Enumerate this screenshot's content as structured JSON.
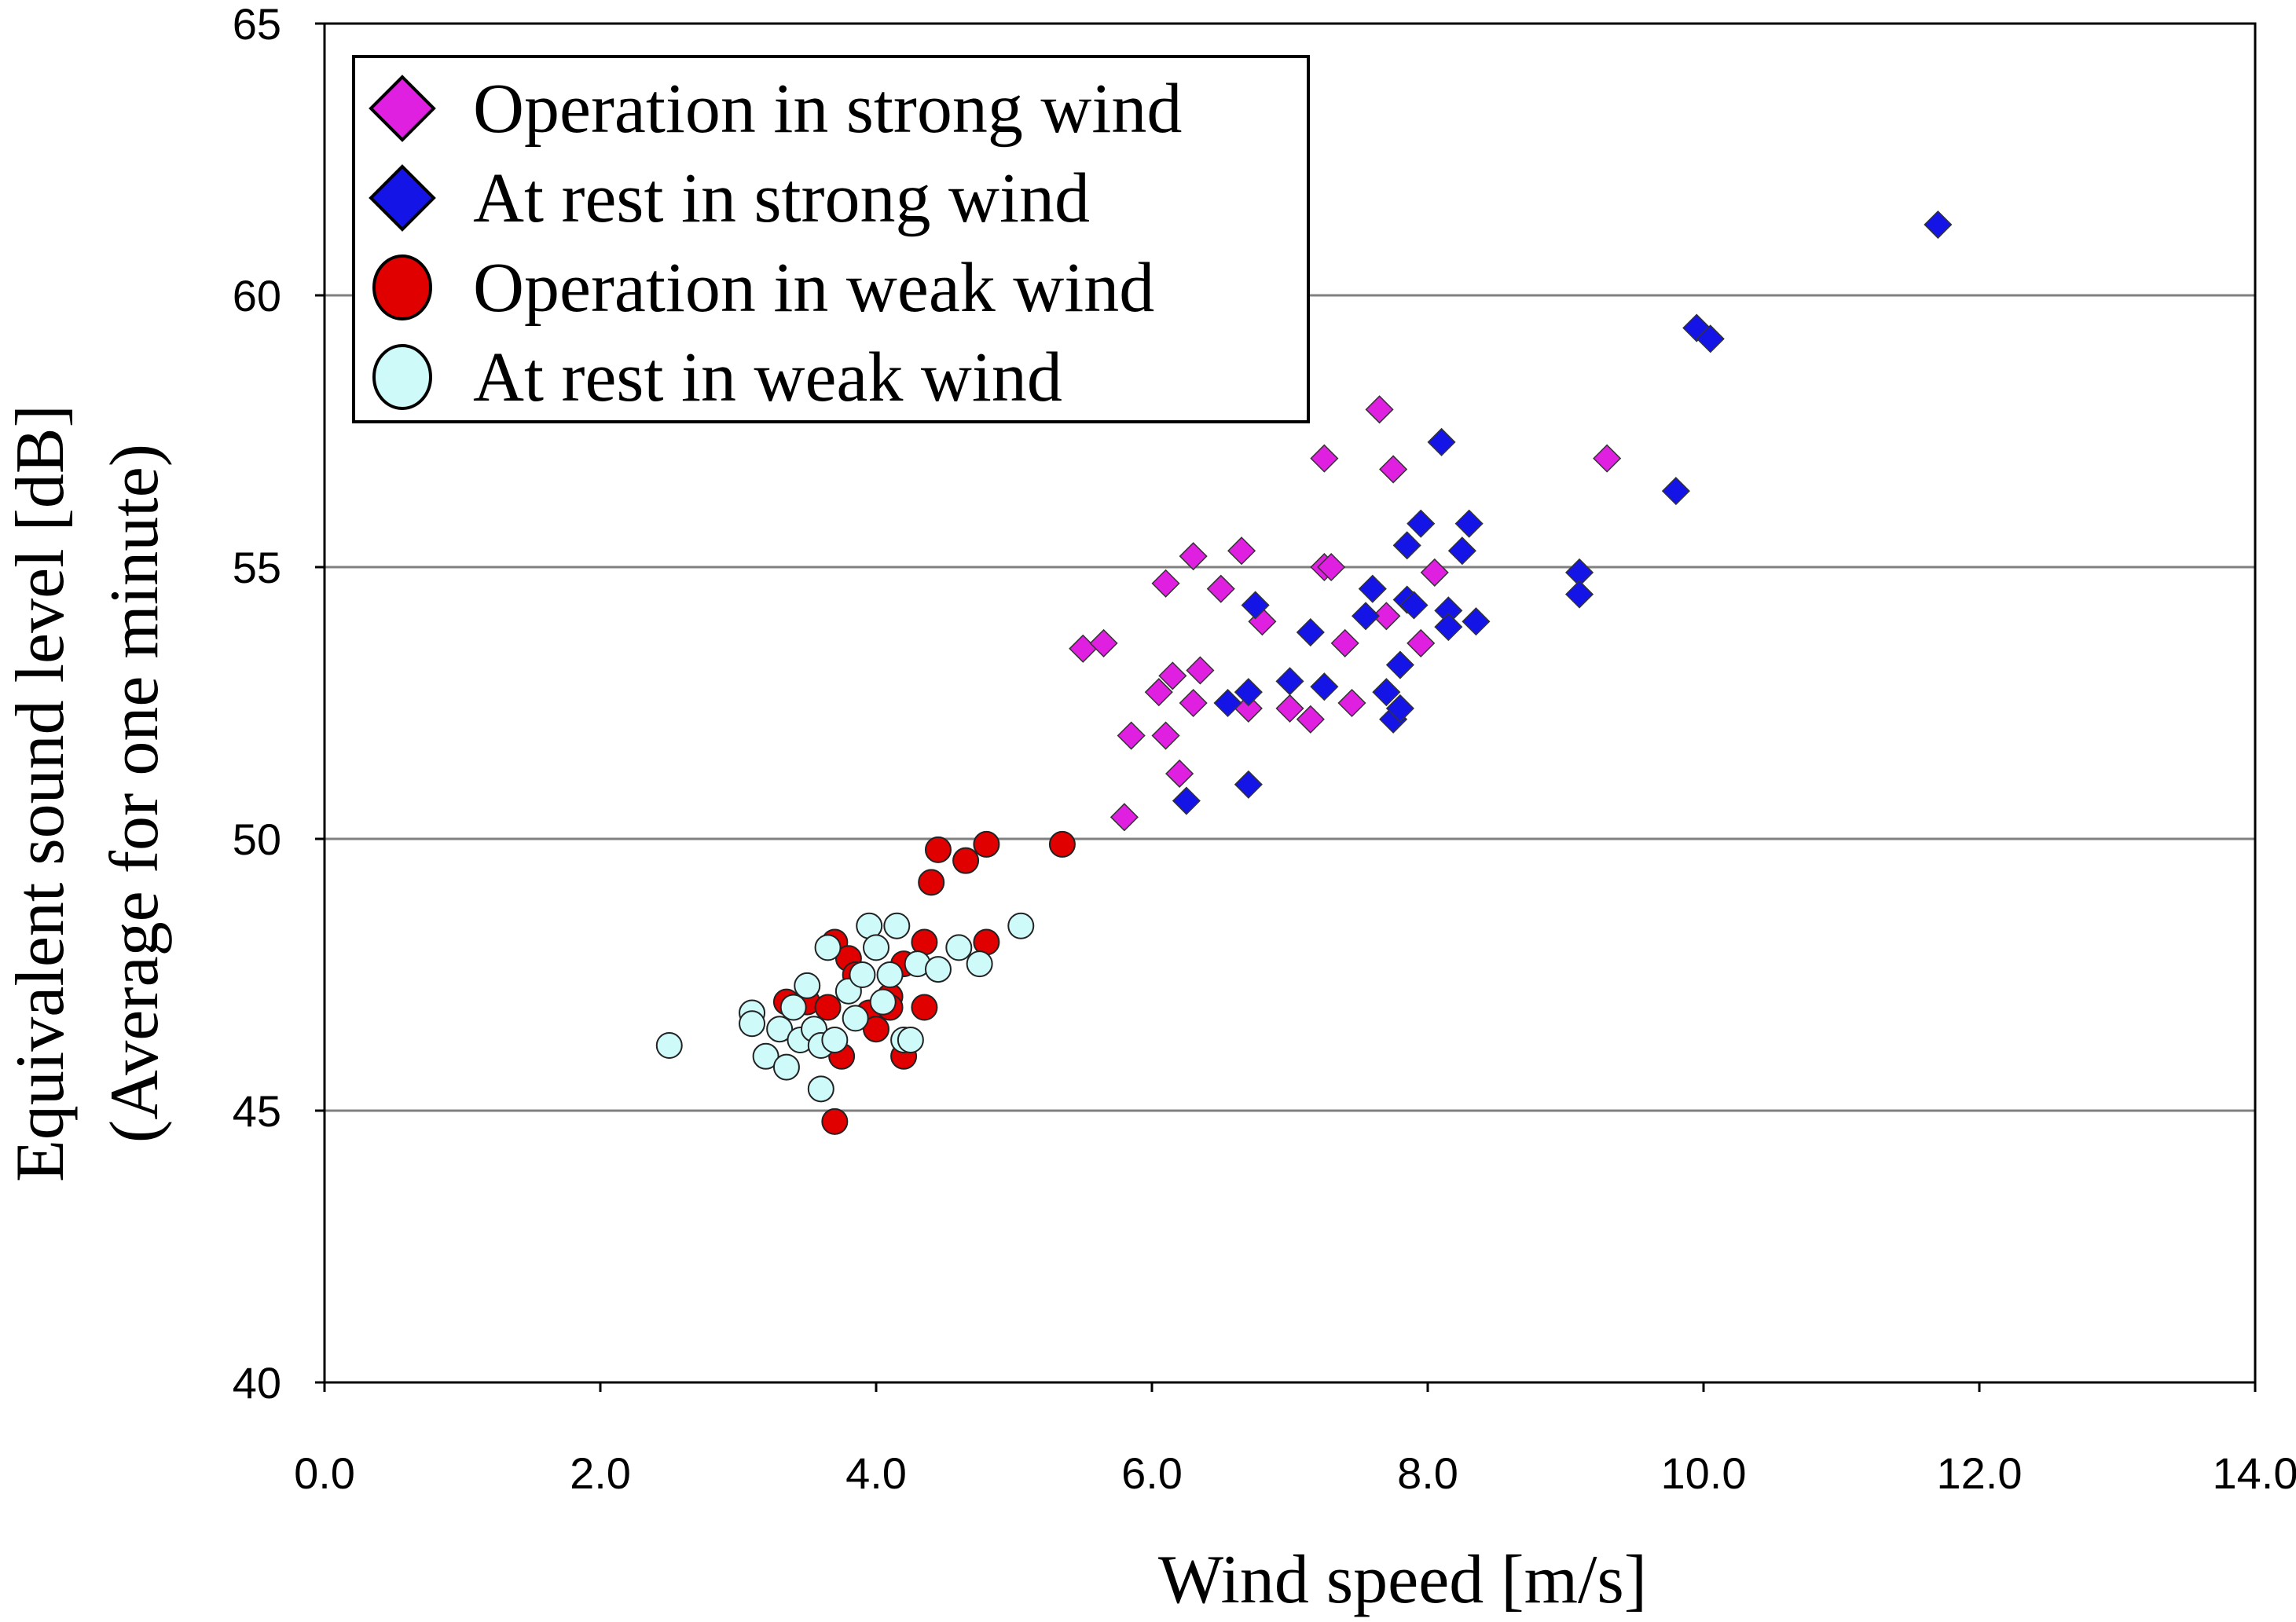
{
  "chart_data": {
    "type": "scatter",
    "title": "",
    "xlabel": "Wind speed [m/s]",
    "ylabel_line1": "Equivalent  sound  level  [dB]",
    "ylabel_line2": "(Average for one minute)",
    "xlim": [
      0,
      14
    ],
    "ylim": [
      40,
      65
    ],
    "x_ticks": [
      0,
      2,
      4,
      6,
      8,
      10,
      12,
      14
    ],
    "x_tick_labels": [
      "0.0",
      "2.0",
      "4.0",
      "6.0",
      "8.0",
      "10.0",
      "12.0",
      "14.0"
    ],
    "y_ticks": [
      40,
      45,
      50,
      55,
      60,
      65
    ],
    "y_tick_labels": [
      "40",
      "45",
      "50",
      "55",
      "60",
      "65"
    ],
    "grid": "horizontal",
    "legend_position": "top-left",
    "series": [
      {
        "name": "Operation in strong wind",
        "marker": "diamond",
        "color": "#e020e0",
        "points": [
          [
            5.5,
            53.5
          ],
          [
            5.65,
            53.6
          ],
          [
            5.8,
            50.4
          ],
          [
            5.85,
            51.9
          ],
          [
            6.05,
            52.7
          ],
          [
            6.1,
            51.9
          ],
          [
            6.1,
            54.7
          ],
          [
            6.15,
            53.0
          ],
          [
            6.2,
            51.2
          ],
          [
            6.3,
            52.5
          ],
          [
            6.3,
            55.2
          ],
          [
            6.35,
            53.1
          ],
          [
            6.5,
            54.6
          ],
          [
            6.65,
            55.3
          ],
          [
            6.7,
            52.4
          ],
          [
            6.8,
            54.0
          ],
          [
            7.0,
            52.4
          ],
          [
            7.15,
            52.2
          ],
          [
            7.25,
            57.0
          ],
          [
            7.25,
            55.0
          ],
          [
            7.3,
            55.0
          ],
          [
            7.4,
            53.6
          ],
          [
            7.45,
            52.5
          ],
          [
            7.65,
            57.9
          ],
          [
            7.7,
            54.1
          ],
          [
            7.75,
            56.8
          ],
          [
            7.95,
            53.6
          ],
          [
            8.05,
            54.9
          ],
          [
            9.3,
            57.0
          ]
        ]
      },
      {
        "name": "At rest in strong wind",
        "marker": "diamond",
        "color": "#1414e6",
        "points": [
          [
            6.25,
            50.7
          ],
          [
            6.55,
            52.5
          ],
          [
            6.7,
            52.7
          ],
          [
            6.7,
            51.0
          ],
          [
            6.75,
            54.3
          ],
          [
            7.0,
            52.9
          ],
          [
            7.15,
            53.8
          ],
          [
            7.25,
            52.8
          ],
          [
            7.55,
            54.1
          ],
          [
            7.6,
            54.6
          ],
          [
            7.7,
            52.7
          ],
          [
            7.75,
            52.2
          ],
          [
            7.8,
            53.2
          ],
          [
            7.8,
            52.4
          ],
          [
            7.85,
            55.4
          ],
          [
            7.85,
            54.4
          ],
          [
            7.9,
            54.3
          ],
          [
            7.95,
            55.8
          ],
          [
            8.1,
            57.3
          ],
          [
            8.15,
            54.2
          ],
          [
            8.15,
            53.9
          ],
          [
            8.25,
            55.3
          ],
          [
            8.3,
            55.8
          ],
          [
            8.35,
            54.0
          ],
          [
            9.1,
            54.9
          ],
          [
            9.1,
            54.5
          ],
          [
            9.8,
            56.4
          ],
          [
            9.95,
            59.4
          ],
          [
            10.05,
            59.2
          ],
          [
            11.7,
            61.3
          ]
        ]
      },
      {
        "name": "Operation in weak wind",
        "marker": "circle",
        "color": "#e00000",
        "points": [
          [
            3.35,
            47.0
          ],
          [
            3.5,
            47.0
          ],
          [
            3.65,
            46.9
          ],
          [
            3.7,
            44.8
          ],
          [
            3.7,
            48.1
          ],
          [
            3.75,
            46.0
          ],
          [
            3.8,
            47.8
          ],
          [
            3.85,
            47.5
          ],
          [
            3.95,
            46.8
          ],
          [
            4.0,
            46.5
          ],
          [
            4.1,
            47.1
          ],
          [
            4.1,
            46.9
          ],
          [
            4.2,
            46.0
          ],
          [
            4.2,
            47.7
          ],
          [
            4.35,
            48.1
          ],
          [
            4.35,
            46.9
          ],
          [
            4.4,
            49.2
          ],
          [
            4.45,
            49.8
          ],
          [
            4.65,
            49.6
          ],
          [
            4.8,
            49.9
          ],
          [
            4.8,
            48.1
          ],
          [
            5.35,
            49.9
          ]
        ]
      },
      {
        "name": "At rest in weak wind",
        "marker": "circle",
        "color": "#cffafa",
        "points": [
          [
            2.5,
            46.2
          ],
          [
            3.1,
            46.8
          ],
          [
            3.1,
            46.6
          ],
          [
            3.2,
            46.0
          ],
          [
            3.3,
            46.5
          ],
          [
            3.35,
            45.8
          ],
          [
            3.4,
            46.9
          ],
          [
            3.45,
            46.3
          ],
          [
            3.5,
            47.3
          ],
          [
            3.55,
            46.5
          ],
          [
            3.6,
            46.2
          ],
          [
            3.6,
            45.4
          ],
          [
            3.65,
            48.0
          ],
          [
            3.7,
            46.3
          ],
          [
            3.8,
            47.2
          ],
          [
            3.85,
            46.7
          ],
          [
            3.9,
            47.5
          ],
          [
            3.95,
            48.4
          ],
          [
            4.0,
            48.0
          ],
          [
            4.05,
            47.0
          ],
          [
            4.1,
            47.5
          ],
          [
            4.15,
            48.4
          ],
          [
            4.2,
            46.3
          ],
          [
            4.25,
            46.3
          ],
          [
            4.3,
            47.7
          ],
          [
            4.45,
            47.6
          ],
          [
            4.6,
            48.0
          ],
          [
            4.75,
            47.7
          ],
          [
            5.05,
            48.4
          ]
        ]
      }
    ]
  }
}
